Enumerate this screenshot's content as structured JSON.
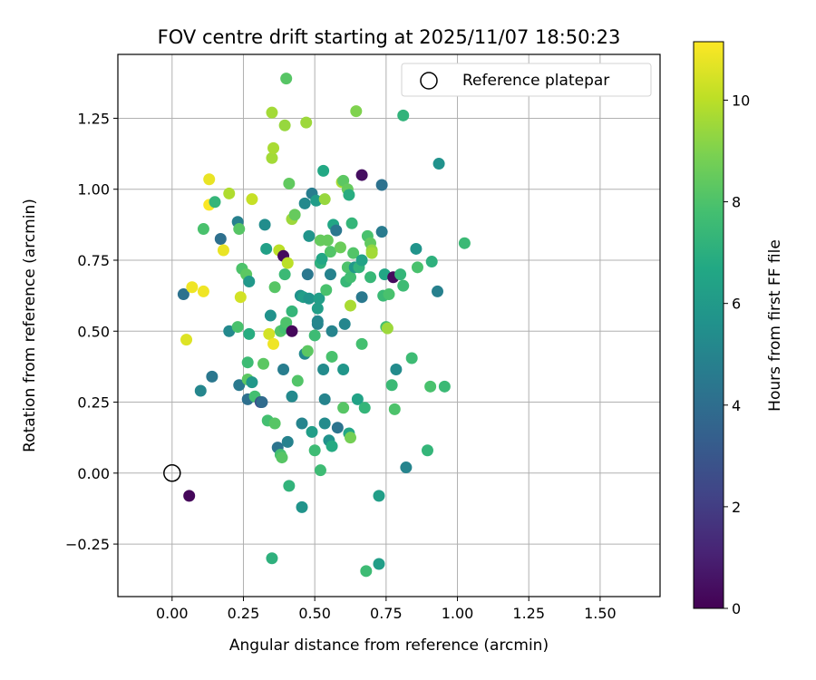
{
  "chart_data": {
    "type": "scatter",
    "title": "FOV centre drift starting at 2025/11/07 18:50:23",
    "xlabel": "Angular distance from reference (arcmin)",
    "ylabel": "Rotation from reference (arcmin)",
    "xlim": [
      -0.19,
      1.71
    ],
    "ylim": [
      -0.435,
      1.475
    ],
    "xticks": [
      "0.00",
      "0.25",
      "0.50",
      "0.75",
      "1.00",
      "1.25",
      "1.50"
    ],
    "yticks": [
      "−0.25",
      "0.00",
      "0.25",
      "0.50",
      "0.75",
      "1.00",
      "1.25"
    ],
    "grid": true,
    "legend": {
      "placement": "upper-right",
      "label": "Reference platepar"
    },
    "reference_point": {
      "x": 0.0,
      "y": 0.0
    },
    "colorbar": {
      "label": "Hours from first FF file",
      "range": [
        0,
        11.15
      ],
      "ticks": [
        "0",
        "2",
        "4",
        "6",
        "8",
        "10"
      ],
      "colormap": "viridis"
    },
    "points": [
      {
        "x": 0.06,
        "y": -0.08,
        "h": 0.2
      },
      {
        "x": 0.04,
        "y": 0.63,
        "h": 4.2
      },
      {
        "x": 0.05,
        "y": 0.47,
        "h": 10.6
      },
      {
        "x": 0.07,
        "y": 0.655,
        "h": 10.9
      },
      {
        "x": 0.11,
        "y": 0.64,
        "h": 10.9
      },
      {
        "x": 0.13,
        "y": 1.035,
        "h": 10.8
      },
      {
        "x": 0.13,
        "y": 0.945,
        "h": 11.1
      },
      {
        "x": 0.1,
        "y": 0.29,
        "h": 5.1
      },
      {
        "x": 0.11,
        "y": 0.86,
        "h": 7.9
      },
      {
        "x": 0.14,
        "y": 0.34,
        "h": 4.4
      },
      {
        "x": 0.15,
        "y": 0.955,
        "h": 7.3
      },
      {
        "x": 0.17,
        "y": 0.825,
        "h": 4.1
      },
      {
        "x": 0.18,
        "y": 0.785,
        "h": 10.8
      },
      {
        "x": 0.2,
        "y": 0.985,
        "h": 9.8
      },
      {
        "x": 0.2,
        "y": 0.5,
        "h": 5.2
      },
      {
        "x": 0.23,
        "y": 0.885,
        "h": 4.8
      },
      {
        "x": 0.235,
        "y": 0.86,
        "h": 8.2
      },
      {
        "x": 0.23,
        "y": 0.515,
        "h": 7.9
      },
      {
        "x": 0.235,
        "y": 0.31,
        "h": 4.5
      },
      {
        "x": 0.24,
        "y": 0.62,
        "h": 10.4
      },
      {
        "x": 0.245,
        "y": 0.72,
        "h": 8.0
      },
      {
        "x": 0.26,
        "y": 0.7,
        "h": 8.3
      },
      {
        "x": 0.265,
        "y": 0.33,
        "h": 8.3
      },
      {
        "x": 0.265,
        "y": 0.39,
        "h": 7.6
      },
      {
        "x": 0.265,
        "y": 0.26,
        "h": 4.1
      },
      {
        "x": 0.27,
        "y": 0.675,
        "h": 5.9
      },
      {
        "x": 0.27,
        "y": 0.49,
        "h": 6.9
      },
      {
        "x": 0.28,
        "y": 0.32,
        "h": 5.9
      },
      {
        "x": 0.28,
        "y": 0.965,
        "h": 10.2
      },
      {
        "x": 0.29,
        "y": 0.27,
        "h": 7.8
      },
      {
        "x": 0.31,
        "y": 0.25,
        "h": 2.6
      },
      {
        "x": 0.315,
        "y": 0.25,
        "h": 3.9
      },
      {
        "x": 0.32,
        "y": 0.385,
        "h": 8.3
      },
      {
        "x": 0.325,
        "y": 0.875,
        "h": 5.4
      },
      {
        "x": 0.33,
        "y": 0.79,
        "h": 6.3
      },
      {
        "x": 0.335,
        "y": 0.185,
        "h": 7.8
      },
      {
        "x": 0.34,
        "y": 0.49,
        "h": 10.4
      },
      {
        "x": 0.345,
        "y": 0.555,
        "h": 5.6
      },
      {
        "x": 0.35,
        "y": 1.27,
        "h": 9.6
      },
      {
        "x": 0.35,
        "y": -0.3,
        "h": 7.1
      },
      {
        "x": 0.35,
        "y": 1.11,
        "h": 9.6
      },
      {
        "x": 0.355,
        "y": 1.145,
        "h": 9.7
      },
      {
        "x": 0.355,
        "y": 0.455,
        "h": 10.9
      },
      {
        "x": 0.36,
        "y": 0.175,
        "h": 8.2
      },
      {
        "x": 0.36,
        "y": 0.655,
        "h": 8.2
      },
      {
        "x": 0.37,
        "y": 0.09,
        "h": 4.3
      },
      {
        "x": 0.375,
        "y": 0.785,
        "h": 10.0
      },
      {
        "x": 0.38,
        "y": 0.5,
        "h": 8.1
      },
      {
        "x": 0.38,
        "y": 0.065,
        "h": 7.8
      },
      {
        "x": 0.385,
        "y": 0.055,
        "h": 8.2
      },
      {
        "x": 0.39,
        "y": 0.765,
        "h": 0.3
      },
      {
        "x": 0.395,
        "y": 0.51,
        "h": 7.8
      },
      {
        "x": 0.39,
        "y": 0.365,
        "h": 4.7
      },
      {
        "x": 0.395,
        "y": 1.225,
        "h": 9.4
      },
      {
        "x": 0.395,
        "y": 0.7,
        "h": 7.5
      },
      {
        "x": 0.4,
        "y": 0.53,
        "h": 8.0
      },
      {
        "x": 0.4,
        "y": 1.39,
        "h": 8.2
      },
      {
        "x": 0.405,
        "y": 0.74,
        "h": 10.0
      },
      {
        "x": 0.405,
        "y": 0.11,
        "h": 4.9
      },
      {
        "x": 0.41,
        "y": 1.02,
        "h": 8.4
      },
      {
        "x": 0.41,
        "y": -0.045,
        "h": 7.2
      },
      {
        "x": 0.42,
        "y": 0.5,
        "h": 0.2
      },
      {
        "x": 0.42,
        "y": 0.27,
        "h": 5.2
      },
      {
        "x": 0.42,
        "y": 0.57,
        "h": 7.3
      },
      {
        "x": 0.42,
        "y": 0.895,
        "h": 9.5
      },
      {
        "x": 0.43,
        "y": 0.91,
        "h": 8.5
      },
      {
        "x": 0.44,
        "y": 0.325,
        "h": 8.1
      },
      {
        "x": 0.45,
        "y": 0.625,
        "h": 5.6
      },
      {
        "x": 0.455,
        "y": 0.175,
        "h": 5.0
      },
      {
        "x": 0.455,
        "y": -0.12,
        "h": 5.7
      },
      {
        "x": 0.46,
        "y": 0.62,
        "h": 6.2
      },
      {
        "x": 0.465,
        "y": 0.42,
        "h": 5.2
      },
      {
        "x": 0.465,
        "y": 0.95,
        "h": 5.2
      },
      {
        "x": 0.47,
        "y": 1.235,
        "h": 9.5
      },
      {
        "x": 0.475,
        "y": 0.43,
        "h": 8.3
      },
      {
        "x": 0.475,
        "y": 0.7,
        "h": 4.4
      },
      {
        "x": 0.48,
        "y": 0.615,
        "h": 5.7
      },
      {
        "x": 0.48,
        "y": 0.835,
        "h": 5.7
      },
      {
        "x": 0.49,
        "y": 0.985,
        "h": 4.7
      },
      {
        "x": 0.49,
        "y": 0.145,
        "h": 6.2
      },
      {
        "x": 0.5,
        "y": 0.08,
        "h": 7.6
      },
      {
        "x": 0.5,
        "y": 0.485,
        "h": 7.6
      },
      {
        "x": 0.505,
        "y": 0.96,
        "h": 6.1
      },
      {
        "x": 0.51,
        "y": 0.525,
        "h": 4.9
      },
      {
        "x": 0.51,
        "y": 0.535,
        "h": 5.1
      },
      {
        "x": 0.51,
        "y": 0.58,
        "h": 6.2
      },
      {
        "x": 0.515,
        "y": 0.615,
        "h": 6.2
      },
      {
        "x": 0.52,
        "y": 0.74,
        "h": 7.1
      },
      {
        "x": 0.52,
        "y": 0.82,
        "h": 8.5
      },
      {
        "x": 0.52,
        "y": 0.01,
        "h": 7.6
      },
      {
        "x": 0.525,
        "y": 0.755,
        "h": 6.6
      },
      {
        "x": 0.53,
        "y": 1.065,
        "h": 6.7
      },
      {
        "x": 0.53,
        "y": 0.365,
        "h": 5.3
      },
      {
        "x": 0.535,
        "y": 0.965,
        "h": 9.4
      },
      {
        "x": 0.535,
        "y": 0.26,
        "h": 5.0
      },
      {
        "x": 0.535,
        "y": 0.175,
        "h": 5.3
      },
      {
        "x": 0.54,
        "y": 0.645,
        "h": 7.9
      },
      {
        "x": 0.545,
        "y": 0.82,
        "h": 8.5
      },
      {
        "x": 0.55,
        "y": 0.115,
        "h": 5.6
      },
      {
        "x": 0.555,
        "y": 0.78,
        "h": 8.1
      },
      {
        "x": 0.555,
        "y": 0.7,
        "h": 4.9
      },
      {
        "x": 0.56,
        "y": 0.41,
        "h": 7.9
      },
      {
        "x": 0.56,
        "y": 0.5,
        "h": 5.0
      },
      {
        "x": 0.56,
        "y": 0.095,
        "h": 6.8
      },
      {
        "x": 0.565,
        "y": 0.875,
        "h": 6.6
      },
      {
        "x": 0.575,
        "y": 0.855,
        "h": 4.4
      },
      {
        "x": 0.58,
        "y": 0.16,
        "h": 4.3
      },
      {
        "x": 0.59,
        "y": 0.795,
        "h": 8.6
      },
      {
        "x": 0.595,
        "y": 1.025,
        "h": 9.7
      },
      {
        "x": 0.6,
        "y": 0.365,
        "h": 5.8
      },
      {
        "x": 0.6,
        "y": 0.23,
        "h": 8.2
      },
      {
        "x": 0.6,
        "y": 1.03,
        "h": 8.3
      },
      {
        "x": 0.605,
        "y": 0.525,
        "h": 5.1
      },
      {
        "x": 0.61,
        "y": 0.675,
        "h": 7.4
      },
      {
        "x": 0.615,
        "y": 1.0,
        "h": 8.5
      },
      {
        "x": 0.615,
        "y": 0.725,
        "h": 8.0
      },
      {
        "x": 0.62,
        "y": 0.14,
        "h": 6.6
      },
      {
        "x": 0.62,
        "y": 0.98,
        "h": 6.9
      },
      {
        "x": 0.625,
        "y": 0.125,
        "h": 8.8
      },
      {
        "x": 0.625,
        "y": 0.59,
        "h": 9.7
      },
      {
        "x": 0.625,
        "y": 0.69,
        "h": 7.7
      },
      {
        "x": 0.63,
        "y": 0.88,
        "h": 7.3
      },
      {
        "x": 0.635,
        "y": 0.775,
        "h": 8.1
      },
      {
        "x": 0.64,
        "y": 0.725,
        "h": 5.9
      },
      {
        "x": 0.645,
        "y": 1.275,
        "h": 9.0
      },
      {
        "x": 0.65,
        "y": 0.26,
        "h": 6.4
      },
      {
        "x": 0.655,
        "y": 0.725,
        "h": 7.2
      },
      {
        "x": 0.665,
        "y": 0.62,
        "h": 4.5
      },
      {
        "x": 0.665,
        "y": 0.455,
        "h": 7.8
      },
      {
        "x": 0.665,
        "y": 0.75,
        "h": 6.4
      },
      {
        "x": 0.665,
        "y": 1.05,
        "h": 0.4
      },
      {
        "x": 0.675,
        "y": 0.23,
        "h": 7.3
      },
      {
        "x": 0.68,
        "y": -0.345,
        "h": 7.6
      },
      {
        "x": 0.685,
        "y": 0.835,
        "h": 7.9
      },
      {
        "x": 0.695,
        "y": 0.81,
        "h": 8.4
      },
      {
        "x": 0.695,
        "y": 0.69,
        "h": 7.4
      },
      {
        "x": 0.7,
        "y": 0.785,
        "h": 9.3
      },
      {
        "x": 0.7,
        "y": 0.775,
        "h": 9.6
      },
      {
        "x": 0.725,
        "y": -0.08,
        "h": 6.2
      },
      {
        "x": 0.725,
        "y": -0.32,
        "h": 6.2
      },
      {
        "x": 0.735,
        "y": 1.015,
        "h": 4.2
      },
      {
        "x": 0.735,
        "y": 0.85,
        "h": 4.6
      },
      {
        "x": 0.74,
        "y": 0.625,
        "h": 7.5
      },
      {
        "x": 0.745,
        "y": 0.7,
        "h": 6.6
      },
      {
        "x": 0.75,
        "y": 0.515,
        "h": 7.8
      },
      {
        "x": 0.755,
        "y": 0.51,
        "h": 9.5
      },
      {
        "x": 0.76,
        "y": 0.63,
        "h": 7.9
      },
      {
        "x": 0.77,
        "y": 0.31,
        "h": 7.5
      },
      {
        "x": 0.775,
        "y": 0.69,
        "h": 0.3
      },
      {
        "x": 0.78,
        "y": 0.225,
        "h": 8.0
      },
      {
        "x": 0.785,
        "y": 0.365,
        "h": 5.3
      },
      {
        "x": 0.8,
        "y": 0.7,
        "h": 7.3
      },
      {
        "x": 0.81,
        "y": 0.66,
        "h": 7.6
      },
      {
        "x": 0.81,
        "y": 1.26,
        "h": 7.2
      },
      {
        "x": 0.82,
        "y": 0.02,
        "h": 5.0
      },
      {
        "x": 0.84,
        "y": 0.405,
        "h": 7.6
      },
      {
        "x": 0.855,
        "y": 0.79,
        "h": 5.7
      },
      {
        "x": 0.86,
        "y": 0.725,
        "h": 7.9
      },
      {
        "x": 0.895,
        "y": 0.08,
        "h": 7.3
      },
      {
        "x": 0.905,
        "y": 0.305,
        "h": 7.9
      },
      {
        "x": 0.91,
        "y": 0.745,
        "h": 7.1
      },
      {
        "x": 0.93,
        "y": 0.64,
        "h": 4.8
      },
      {
        "x": 0.935,
        "y": 1.09,
        "h": 5.6
      },
      {
        "x": 0.955,
        "y": 0.305,
        "h": 7.5
      },
      {
        "x": 1.025,
        "y": 0.81,
        "h": 7.5
      }
    ]
  }
}
